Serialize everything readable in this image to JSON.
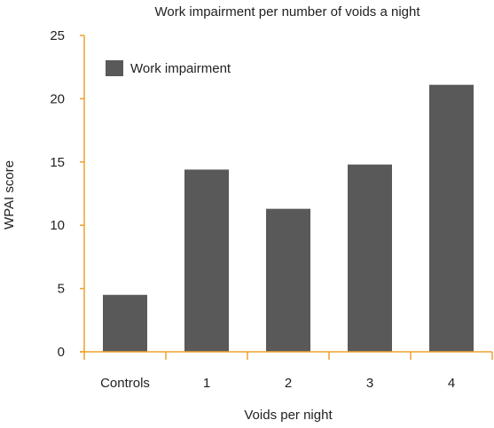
{
  "chart_data": {
    "type": "bar",
    "title": "Work impairment per number of voids a night",
    "xlabel": "Voids per night",
    "ylabel": "WPAI score",
    "categories": [
      "Controls",
      "1",
      "2",
      "3",
      "4"
    ],
    "series": [
      {
        "name": "Work impairment",
        "values": [
          4.5,
          14.4,
          11.3,
          14.8,
          21.1
        ]
      }
    ],
    "ylim": [
      0,
      25
    ],
    "yticks": [
      "0",
      "5",
      "10",
      "15",
      "20",
      "25"
    ],
    "grid": false,
    "legend_position": "top-left",
    "colors": {
      "bar": "#595959",
      "axis": "#f0a030",
      "text": "#222222"
    }
  }
}
